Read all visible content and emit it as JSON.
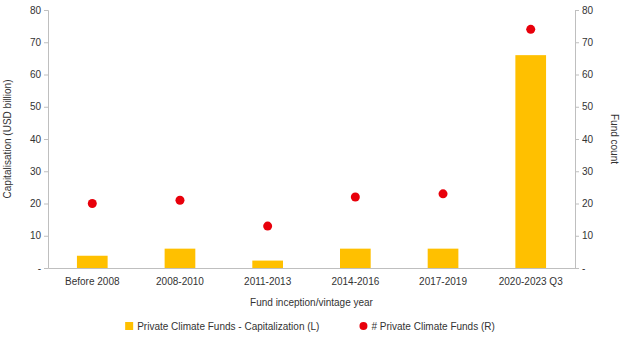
{
  "chart_data": {
    "type": "bar",
    "x_label": "Fund inception/vintage year",
    "y_label": "Capitalisation (USD billion)",
    "y2_label": "Fund count",
    "categories": [
      "Before 2008",
      "2008-2010",
      "2011-2013",
      "2014-2016",
      "2017-2019",
      "2020-2023 Q3"
    ],
    "series": [
      {
        "name": "Private Climate Funds - Capitalization (L)",
        "type": "bar",
        "color": "#FFC000",
        "values": [
          3.8,
          6,
          2.3,
          6,
          6,
          66
        ]
      },
      {
        "name": "# Private Climate Funds (R)",
        "type": "scatter",
        "marker": "circle",
        "color": "#E8000B",
        "axis": "y2",
        "values": [
          20,
          21,
          13,
          22,
          23,
          74
        ]
      }
    ],
    "ylim": [
      0,
      80
    ],
    "yticks": [
      {
        "value": 0,
        "label": "-"
      },
      10,
      20,
      30,
      40,
      50,
      60,
      70,
      80
    ],
    "y2lim": [
      0,
      80
    ],
    "y2ticks": [
      {
        "value": 0,
        "label": "-"
      },
      10,
      20,
      30,
      40,
      50,
      60,
      70,
      80
    ],
    "grid": false,
    "legend": "bottom"
  }
}
